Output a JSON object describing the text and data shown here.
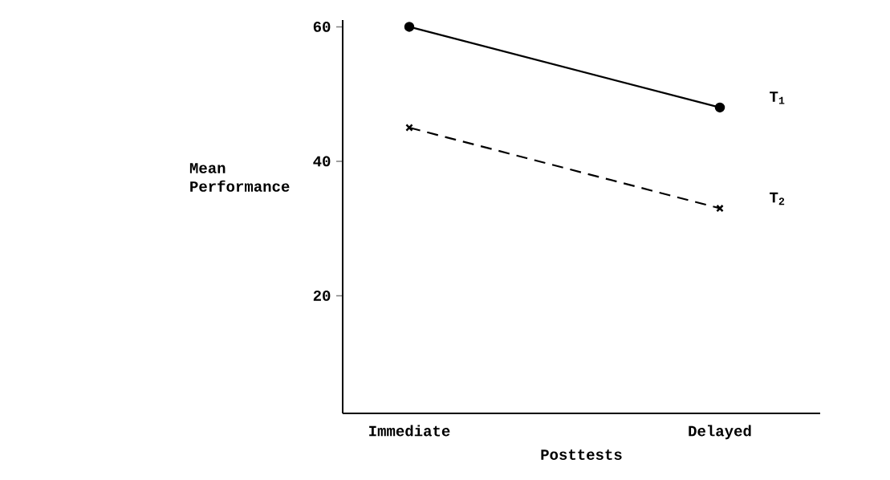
{
  "chart_data": {
    "type": "line",
    "xlabel": "Posttests",
    "ylabel": "Mean Performance",
    "categories": [
      "Immediate",
      "Delayed"
    ],
    "series": [
      {
        "name": "T$_{1}$",
        "color": "#000000",
        "values": [
          60,
          48
        ],
        "marker": "circle",
        "line_style": "solid"
      },
      {
        "name": "T$_{2}$",
        "color": "#000000",
        "values": [
          45,
          33
        ],
        "marker": "cross",
        "line_style": "dashed"
      }
    ],
    "ylim": [
      2.5,
      61
    ],
    "yticks": [
      20,
      40,
      60
    ],
    "grid": false,
    "legend": false
  }
}
